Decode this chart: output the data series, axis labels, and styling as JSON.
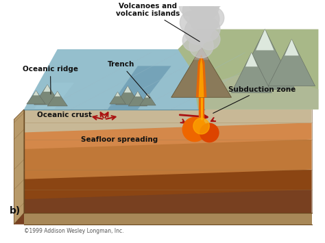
{
  "background_color": "#ffffff",
  "labels": {
    "volcanoes": "Volcanoes and\nvolcanic islands",
    "trench": "Trench",
    "oceanic_ridge": "Oceanic ridge",
    "oceanic_crust": "Oceanic crust",
    "seafloor_spreading": "Seafloor spreading",
    "subduction_zone": "Subduction zone",
    "panel_label": "b)",
    "copyright": "©1999 Addison Wesley Longman, Inc."
  },
  "colors": {
    "sky": "#ffffff",
    "ocean_blue": "#8ab8c8",
    "ocean_blue2": "#7aaabb",
    "ocean_surface": "#9ecad8",
    "crust_tan": "#c8b896",
    "crust_tan2": "#d4c8a0",
    "mantle_orange": "#d4884a",
    "mantle_orange2": "#c07838",
    "mantle_brown": "#a06030",
    "mantle_dark": "#784020",
    "continental_green": "#a8b888",
    "continental_gray": "#9aaa9a",
    "continental_tan": "#c8b890",
    "mountain_gray": "#8a9888",
    "mountain_light": "#c0ccc0",
    "snow_white": "#e8ece8",
    "volcano_brown": "#8a7a5a",
    "lava_orange": "#ee6600",
    "lava_yellow": "#ffaa00",
    "lava_red": "#cc3300",
    "smoke_gray": "#c8c8c8",
    "smoke_light": "#e0e0e0",
    "arrow_red": "#aa1111",
    "text_dark": "#111111",
    "edge_brown": "#6a4820"
  },
  "font_sizes": {
    "labels": 7.5,
    "panel": 10,
    "copyright": 5.5
  }
}
